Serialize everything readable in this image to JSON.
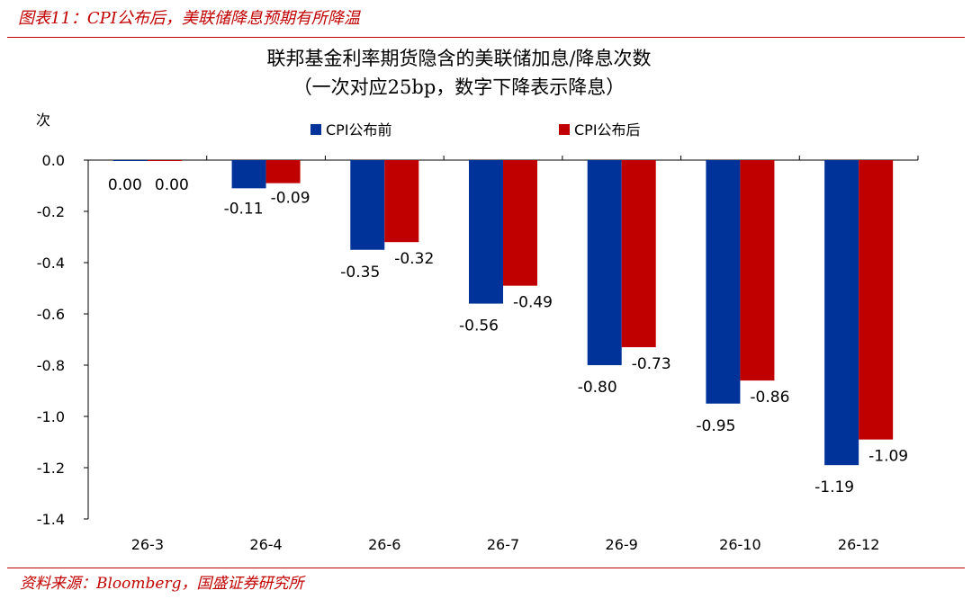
{
  "header": {
    "caption": "图表11：CPI公布后，美联储降息预期有所降温"
  },
  "source": {
    "text": "资料来源：Bloomberg，国盛证券研究所"
  },
  "colors": {
    "accent": "#c00000",
    "series_before": "#003399",
    "series_after": "#c00000"
  },
  "chart_data": {
    "type": "bar",
    "title": "联邦基金利率期货隐含的美联储加息/降息次数",
    "subtitle": "（一次对应25bp，数字下降表示降息）",
    "ylabel": "次",
    "xlabel": "",
    "ylim": [
      -1.4,
      0.0
    ],
    "yticks": [
      0.0,
      -0.2,
      -0.4,
      -0.6,
      -0.8,
      -1.0,
      -1.2,
      -1.4
    ],
    "ytick_labels": [
      "0.0",
      "-0.2",
      "-0.4",
      "-0.6",
      "-0.8",
      "-1.0",
      "-1.2",
      "-1.4"
    ],
    "categories": [
      "26-3",
      "26-4",
      "26-6",
      "26-7",
      "26-9",
      "26-10",
      "26-12"
    ],
    "legend_position": "top-center",
    "series": [
      {
        "name": "CPI公布前",
        "color": "#003399",
        "values": [
          0.0,
          -0.11,
          -0.35,
          -0.56,
          -0.8,
          -0.95,
          -1.19
        ]
      },
      {
        "name": "CPI公布后",
        "color": "#c00000",
        "values": [
          0.0,
          -0.09,
          -0.32,
          -0.49,
          -0.73,
          -0.86,
          -1.09
        ]
      }
    ]
  }
}
